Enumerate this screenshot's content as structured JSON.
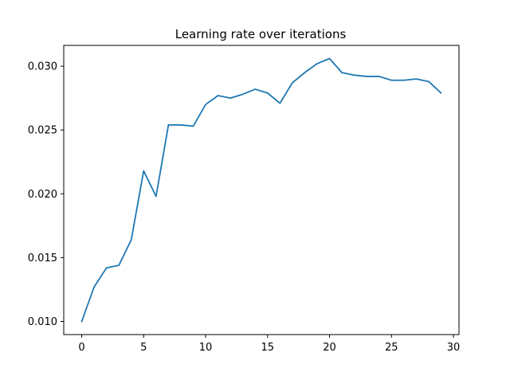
{
  "chart_data": {
    "type": "line",
    "title": "Learning rate over iterations",
    "xlabel": "",
    "ylabel": "",
    "xlim": [
      -1.45,
      30.45
    ],
    "ylim": [
      0.00897,
      0.03163
    ],
    "x_ticks": [
      0,
      5,
      10,
      15,
      20,
      25,
      30
    ],
    "x_tick_labels": [
      "0",
      "5",
      "10",
      "15",
      "20",
      "25",
      "30"
    ],
    "y_ticks": [
      0.01,
      0.015,
      0.02,
      0.025,
      0.03
    ],
    "y_tick_labels": [
      "0.010",
      "0.015",
      "0.020",
      "0.025",
      "0.030"
    ],
    "grid": false,
    "series": [
      {
        "color": "#1f77b4",
        "x": [
          0,
          1,
          2,
          3,
          4,
          5,
          6,
          7,
          8,
          9,
          10,
          11,
          12,
          13,
          14,
          15,
          16,
          17,
          18,
          19,
          20,
          21,
          22,
          23,
          24,
          25,
          26,
          27,
          28,
          29
        ],
        "values": [
          0.01,
          0.0127,
          0.0142,
          0.0144,
          0.0164,
          0.0218,
          0.0198,
          0.0254,
          0.0254,
          0.0253,
          0.027,
          0.0277,
          0.0275,
          0.0278,
          0.0282,
          0.0279,
          0.0271,
          0.0287,
          0.0295,
          0.0302,
          0.0306,
          0.0295,
          0.0293,
          0.0292,
          0.0292,
          0.0289,
          0.0289,
          0.029,
          0.0288,
          0.0279
        ]
      }
    ]
  }
}
